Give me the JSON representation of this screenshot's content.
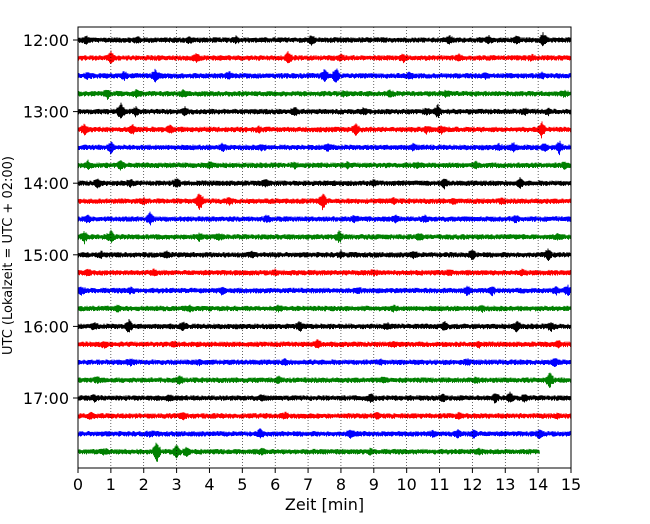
{
  "chart_data": {
    "type": "line",
    "title": "",
    "xlabel": "Zeit  [min]",
    "ylabel": "UTC (Lokalzeit = UTC + 02:00)",
    "xlim": [
      0,
      15
    ],
    "x_ticks": [
      0,
      1,
      2,
      3,
      4,
      5,
      6,
      7,
      8,
      9,
      10,
      11,
      12,
      13,
      14,
      15
    ],
    "y_tick_labels": [
      "12:00",
      "13:00",
      "14:00",
      "15:00",
      "16:00",
      "17:00"
    ],
    "y_tick_rows": [
      0,
      4,
      8,
      12,
      16,
      20
    ],
    "grid": "vertical dotted",
    "rows": [
      {
        "hour_start": "12:00",
        "color": "#000000",
        "events": [
          [
            0.25,
            0.5
          ],
          [
            1.8,
            0.35
          ],
          [
            3.4,
            0.4
          ],
          [
            4.8,
            0.45
          ],
          [
            7.1,
            0.6
          ],
          [
            11.3,
            0.55
          ],
          [
            12.5,
            0.4
          ],
          [
            13.35,
            0.5
          ],
          [
            14.15,
            1.0
          ]
        ]
      },
      {
        "hour_start": "12:15",
        "color": "#ff0000",
        "events": [
          [
            1.0,
            0.9
          ],
          [
            3.6,
            0.5
          ],
          [
            6.4,
            0.8
          ],
          [
            8.0,
            0.4
          ],
          [
            9.9,
            0.45
          ],
          [
            11.6,
            0.35
          ],
          [
            13.8,
            0.3
          ]
        ]
      },
      {
        "hour_start": "12:30",
        "color": "#0000ff",
        "events": [
          [
            0.3,
            0.35
          ],
          [
            1.4,
            0.5
          ],
          [
            2.35,
            0.85
          ],
          [
            4.6,
            0.4
          ],
          [
            7.5,
            0.9
          ],
          [
            7.85,
            1.3
          ],
          [
            10.1,
            0.4
          ],
          [
            12.4,
            0.35
          ],
          [
            14.1,
            0.3
          ]
        ]
      },
      {
        "hour_start": "12:45",
        "color": "#008000",
        "events": [
          [
            0.9,
            0.6
          ],
          [
            1.8,
            0.5
          ],
          [
            3.2,
            0.45
          ],
          [
            8.1,
            0.3
          ],
          [
            9.5,
            0.35
          ],
          [
            11.2,
            0.3
          ],
          [
            14.8,
            0.3
          ]
        ]
      },
      {
        "hour_start": "13:00",
        "color": "#000000",
        "events": [
          [
            1.3,
            1.3
          ],
          [
            1.75,
            0.6
          ],
          [
            3.25,
            0.5
          ],
          [
            6.6,
            0.55
          ],
          [
            8.7,
            0.4
          ],
          [
            10.6,
            0.35
          ],
          [
            10.95,
            0.9
          ],
          [
            13.6,
            0.35
          ],
          [
            14.3,
            0.4
          ]
        ]
      },
      {
        "hour_start": "13:15",
        "color": "#ff0000",
        "events": [
          [
            0.2,
            0.7
          ],
          [
            1.65,
            0.6
          ],
          [
            2.8,
            0.5
          ],
          [
            5.5,
            0.4
          ],
          [
            8.45,
            0.8
          ],
          [
            10.6,
            0.4
          ],
          [
            11.05,
            0.5
          ],
          [
            14.1,
            1.25
          ]
        ]
      },
      {
        "hour_start": "13:30",
        "color": "#0000ff",
        "events": [
          [
            1.0,
            0.9
          ],
          [
            4.4,
            0.5
          ],
          [
            5.6,
            0.35
          ],
          [
            7.6,
            0.4
          ],
          [
            10.2,
            0.3
          ],
          [
            12.8,
            0.35
          ],
          [
            13.25,
            0.6
          ],
          [
            14.2,
            0.45
          ],
          [
            14.65,
            0.85
          ]
        ]
      },
      {
        "hour_start": "13:45",
        "color": "#008000",
        "events": [
          [
            0.3,
            0.55
          ],
          [
            1.3,
            0.6
          ],
          [
            4.0,
            0.4
          ],
          [
            6.6,
            0.35
          ],
          [
            8.2,
            0.35
          ],
          [
            10.3,
            0.3
          ],
          [
            12.1,
            0.4
          ],
          [
            14.8,
            0.4
          ]
        ]
      },
      {
        "hour_start": "14:00",
        "color": "#000000",
        "events": [
          [
            0.6,
            0.6
          ],
          [
            1.6,
            0.45
          ],
          [
            3.0,
            0.75
          ],
          [
            5.7,
            0.5
          ],
          [
            9.0,
            0.4
          ],
          [
            11.15,
            0.6
          ],
          [
            13.45,
            0.7
          ]
        ]
      },
      {
        "hour_start": "14:15",
        "color": "#ff0000",
        "events": [
          [
            2.0,
            0.4
          ],
          [
            3.7,
            1.4
          ],
          [
            4.6,
            0.35
          ],
          [
            7.45,
            1.45
          ],
          [
            9.6,
            0.35
          ],
          [
            11.4,
            0.3
          ],
          [
            12.9,
            0.35
          ]
        ]
      },
      {
        "hour_start": "14:30",
        "color": "#0000ff",
        "events": [
          [
            0.3,
            0.5
          ],
          [
            2.2,
            0.9
          ],
          [
            5.75,
            0.4
          ],
          [
            8.4,
            0.35
          ],
          [
            9.65,
            0.45
          ],
          [
            10.55,
            0.4
          ],
          [
            13.3,
            0.45
          ]
        ]
      },
      {
        "hour_start": "14:45",
        "color": "#008000",
        "events": [
          [
            0.2,
            0.75
          ],
          [
            1.0,
            0.9
          ],
          [
            3.7,
            0.45
          ],
          [
            4.3,
            0.35
          ],
          [
            7.95,
            0.9
          ],
          [
            10.4,
            0.35
          ],
          [
            14.6,
            0.3
          ]
        ]
      },
      {
        "hour_start": "15:00",
        "color": "#000000",
        "events": [
          [
            0.7,
            0.35
          ],
          [
            2.7,
            0.4
          ],
          [
            5.3,
            0.35
          ],
          [
            8.0,
            0.35
          ],
          [
            10.2,
            0.4
          ],
          [
            12.0,
            0.7
          ],
          [
            14.3,
            0.75
          ]
        ]
      },
      {
        "hour_start": "15:15",
        "color": "#ff0000",
        "events": [
          [
            0.3,
            0.4
          ],
          [
            2.3,
            0.35
          ],
          [
            6.0,
            0.3
          ],
          [
            9.0,
            0.3
          ],
          [
            11.3,
            0.3
          ],
          [
            13.5,
            0.3
          ]
        ]
      },
      {
        "hour_start": "15:30",
        "color": "#0000ff",
        "events": [
          [
            0.1,
            0.6
          ],
          [
            1.6,
            0.4
          ],
          [
            4.4,
            0.5
          ],
          [
            8.5,
            0.35
          ],
          [
            11.85,
            0.6
          ],
          [
            12.6,
            0.55
          ],
          [
            14.55,
            0.5
          ],
          [
            14.9,
            0.6
          ]
        ]
      },
      {
        "hour_start": "15:45",
        "color": "#008000",
        "events": [
          [
            1.2,
            0.4
          ],
          [
            3.4,
            0.3
          ],
          [
            6.1,
            0.35
          ],
          [
            9.6,
            0.3
          ],
          [
            12.3,
            0.3
          ]
        ]
      },
      {
        "hour_start": "16:00",
        "color": "#000000",
        "events": [
          [
            0.5,
            0.35
          ],
          [
            1.55,
            0.95
          ],
          [
            3.2,
            0.5
          ],
          [
            6.75,
            0.6
          ],
          [
            9.4,
            0.35
          ],
          [
            11.15,
            0.55
          ],
          [
            13.35,
            0.8
          ],
          [
            14.4,
            0.65
          ]
        ]
      },
      {
        "hour_start": "16:15",
        "color": "#ff0000",
        "events": [
          [
            0.8,
            0.4
          ],
          [
            2.9,
            0.35
          ],
          [
            7.3,
            0.55
          ],
          [
            9.6,
            0.3
          ],
          [
            12.2,
            0.35
          ],
          [
            14.6,
            0.4
          ]
        ]
      },
      {
        "hour_start": "16:30",
        "color": "#0000ff",
        "events": [
          [
            1.6,
            0.35
          ],
          [
            3.7,
            0.3
          ],
          [
            6.3,
            0.3
          ],
          [
            9.2,
            0.3
          ],
          [
            11.85,
            0.35
          ],
          [
            14.5,
            0.6
          ]
        ]
      },
      {
        "hour_start": "16:45",
        "color": "#008000",
        "events": [
          [
            0.6,
            0.35
          ],
          [
            3.1,
            0.6
          ],
          [
            6.1,
            0.4
          ],
          [
            9.3,
            0.3
          ],
          [
            12.1,
            0.35
          ],
          [
            14.35,
            1.4
          ]
        ]
      },
      {
        "hour_start": "17:00",
        "color": "#000000",
        "events": [
          [
            0.5,
            0.4
          ],
          [
            2.8,
            0.35
          ],
          [
            5.6,
            0.3
          ],
          [
            8.9,
            0.55
          ],
          [
            11.1,
            0.5
          ],
          [
            12.7,
            0.6
          ],
          [
            13.15,
            0.65
          ],
          [
            13.6,
            0.4
          ]
        ]
      },
      {
        "hour_start": "17:15",
        "color": "#ff0000",
        "events": [
          [
            0.4,
            0.35
          ],
          [
            3.2,
            0.4
          ],
          [
            6.3,
            0.35
          ],
          [
            9.1,
            0.3
          ],
          [
            11.6,
            0.35
          ],
          [
            14.6,
            0.3
          ]
        ]
      },
      {
        "hour_start": "17:30",
        "color": "#0000ff",
        "events": [
          [
            2.2,
            0.3
          ],
          [
            5.55,
            0.6
          ],
          [
            8.3,
            0.5
          ],
          [
            10.8,
            0.4
          ],
          [
            11.55,
            0.5
          ],
          [
            12.05,
            0.55
          ],
          [
            14.05,
            0.6
          ]
        ]
      },
      {
        "hour_start": "17:45",
        "color": "#008000",
        "events": [
          [
            0.8,
            0.3
          ],
          [
            2.4,
            1.6
          ],
          [
            3.0,
            1.1
          ],
          [
            3.3,
            0.7
          ],
          [
            5.6,
            0.35
          ],
          [
            8.9,
            0.3
          ],
          [
            12.2,
            0.4
          ]
        ],
        "end_min": 14.05
      }
    ]
  }
}
